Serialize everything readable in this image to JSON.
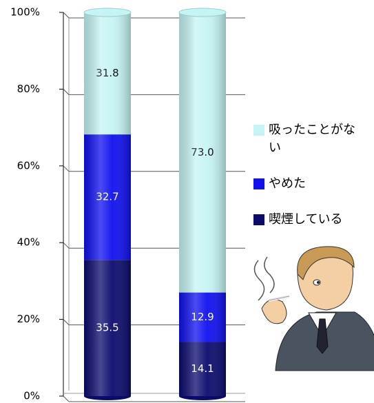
{
  "chart_data": {
    "type": "stacked-bar",
    "categories": [
      null,
      null
    ],
    "series": [
      {
        "name": "喫煙している",
        "color": "#0b0b6e",
        "values": [
          35.5,
          14.1
        ],
        "value_labels": [
          "35.5",
          "14.1"
        ]
      },
      {
        "name": "やめた",
        "color": "#1010f0",
        "values": [
          32.7,
          12.9
        ],
        "value_labels": [
          "32.7",
          "12.9"
        ]
      },
      {
        "name": "吸ったことがない",
        "color": "#c6f4f4",
        "values": [
          31.8,
          73.0
        ],
        "value_labels": [
          "31.8",
          "73.0"
        ]
      }
    ],
    "ylim": [
      0,
      100
    ],
    "yticks": [
      {
        "value": 0,
        "label": "0%"
      },
      {
        "value": 20,
        "label": "20%"
      },
      {
        "value": 40,
        "label": "40%"
      },
      {
        "value": 60,
        "label": "60%"
      },
      {
        "value": 80,
        "label": "80%"
      },
      {
        "value": 100,
        "label": "100%"
      }
    ],
    "grid": true
  }
}
